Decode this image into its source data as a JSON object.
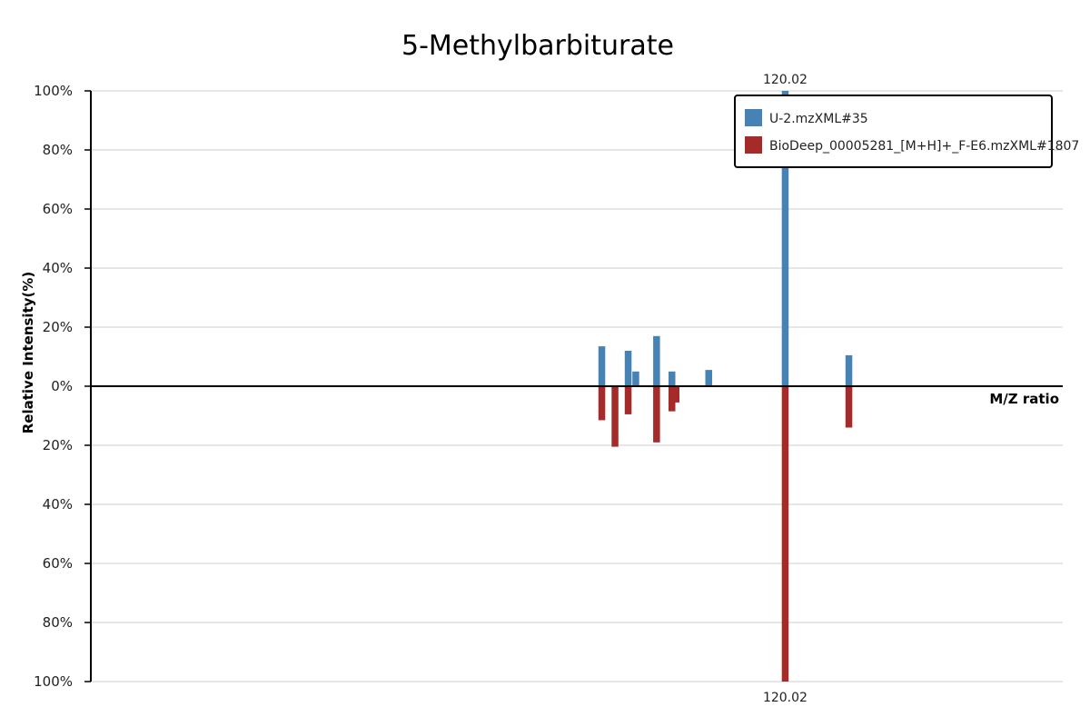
{
  "chart_data": {
    "type": "bar",
    "title": "5-Methylbarbiturate",
    "xlabel": "M/Z ratio",
    "ylabel": "Relative Intensity(%)",
    "ylim": [
      -100,
      100
    ],
    "xlim": [
      20,
      160
    ],
    "y_ticks": [
      "100%",
      "80%",
      "60%",
      "40%",
      "20%",
      "0%",
      "20%",
      "40%",
      "60%",
      "80%",
      "100%"
    ],
    "grid": true,
    "legend_position": "top-right",
    "series": [
      {
        "name": "U-2.mzXML#35",
        "color": "#4682b4",
        "direction": "up",
        "x": [
          93.6,
          97.4,
          98.5,
          101.5,
          103.7,
          109.0,
          120.02,
          129.2
        ],
        "values": [
          13.5,
          12.0,
          5.0,
          17.0,
          5.0,
          5.5,
          100,
          10.5
        ]
      },
      {
        "name": "BioDeep_00005281_[M+H]+_F-E6.mzXML#1807",
        "color": "#a52a2a",
        "direction": "down",
        "x": [
          93.6,
          95.5,
          97.4,
          101.5,
          103.7,
          104.3,
          120.02,
          129.2
        ],
        "values": [
          11.5,
          20.5,
          9.5,
          19.0,
          8.5,
          5.5,
          100,
          14.0
        ]
      }
    ],
    "peak_labels": [
      {
        "label": "120.02",
        "position": "top"
      },
      {
        "label": "120.02",
        "position": "bottom"
      }
    ]
  }
}
